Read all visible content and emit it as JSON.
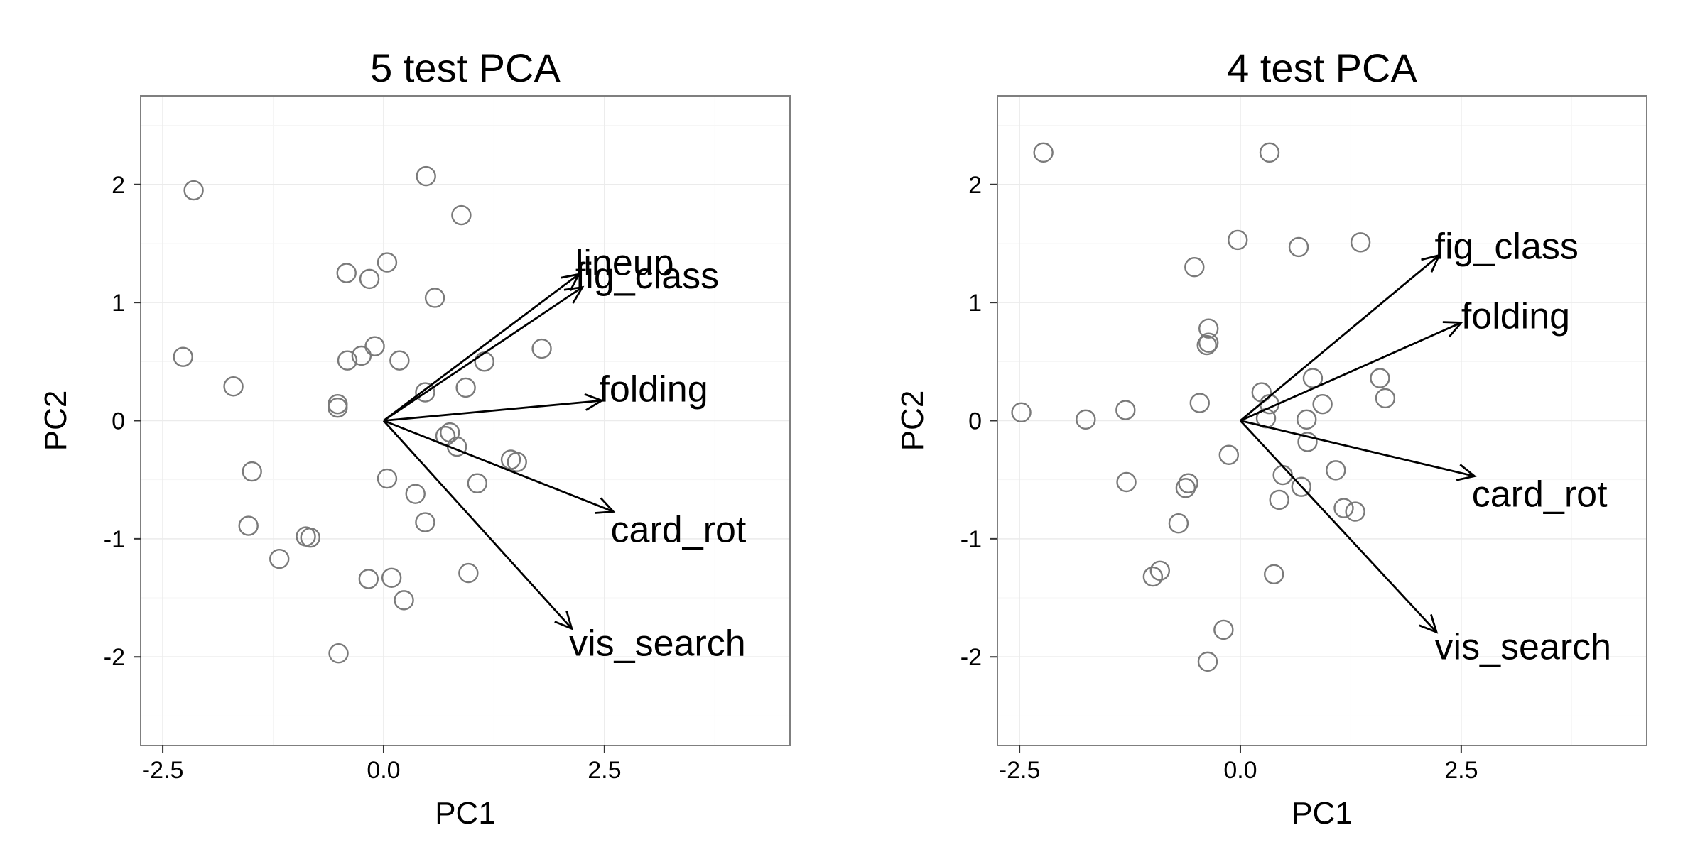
{
  "chart_data": [
    {
      "type": "scatter",
      "title": "5 test PCA",
      "xlabel": "PC1",
      "ylabel": "PC2",
      "xlim": [
        -2.75,
        4.6
      ],
      "ylim": [
        -2.75,
        2.75
      ],
      "xticks": [
        -2.5,
        0.0,
        2.5
      ],
      "xtick_labels": [
        "-2.5",
        "0.0",
        "2.5"
      ],
      "yticks": [
        -2,
        -1,
        0,
        1,
        2
      ],
      "ytick_labels": [
        "-2",
        "-1",
        "0",
        "1",
        "2"
      ],
      "grid": true,
      "points": [
        [
          -2.15,
          1.95
        ],
        [
          -2.27,
          0.54
        ],
        [
          -1.7,
          0.29
        ],
        [
          -1.49,
          -0.43
        ],
        [
          -1.53,
          -0.89
        ],
        [
          -1.18,
          -1.17
        ],
        [
          -0.88,
          -0.98
        ],
        [
          -0.83,
          -0.99
        ],
        [
          -0.52,
          0.14
        ],
        [
          -0.52,
          0.11
        ],
        [
          -0.42,
          1.25
        ],
        [
          -0.41,
          0.51
        ],
        [
          -0.25,
          0.55
        ],
        [
          -0.16,
          1.2
        ],
        [
          -0.1,
          0.63
        ],
        [
          0.04,
          1.34
        ],
        [
          0.18,
          0.51
        ],
        [
          0.48,
          2.07
        ],
        [
          0.47,
          0.24
        ],
        [
          0.58,
          1.04
        ],
        [
          0.88,
          1.74
        ],
        [
          0.93,
          0.28
        ],
        [
          1.14,
          0.5
        ],
        [
          1.79,
          0.61
        ],
        [
          0.7,
          -0.13
        ],
        [
          0.75,
          -0.1
        ],
        [
          0.83,
          -0.22
        ],
        [
          1.06,
          -0.53
        ],
        [
          1.44,
          -0.33
        ],
        [
          1.51,
          -0.35
        ],
        [
          0.04,
          -0.49
        ],
        [
          0.36,
          -0.62
        ],
        [
          0.47,
          -0.86
        ],
        [
          0.96,
          -1.29
        ],
        [
          -0.17,
          -1.34
        ],
        [
          0.09,
          -1.33
        ],
        [
          0.23,
          -1.52
        ],
        [
          -0.51,
          -1.97
        ]
      ],
      "arrows": [
        {
          "label": "lineup",
          "x": 2.21,
          "y": 1.24,
          "label_x": 2.17,
          "label_y": 1.34
        },
        {
          "label": "fig_class",
          "x": 2.25,
          "y": 1.13,
          "label_x": 2.17,
          "label_y": 1.23
        },
        {
          "label": "folding",
          "x": 2.47,
          "y": 0.17,
          "label_x": 2.44,
          "label_y": 0.27
        },
        {
          "label": "card_rot",
          "x": 2.6,
          "y": -0.77,
          "label_x": 2.57,
          "label_y": -0.92
        },
        {
          "label": "vis_search",
          "x": 2.13,
          "y": -1.76,
          "label_x": 2.1,
          "label_y": -1.88
        }
      ]
    },
    {
      "type": "scatter",
      "title": "4 test PCA",
      "xlabel": "PC1",
      "ylabel": "PC2",
      "xlim": [
        -2.75,
        4.6
      ],
      "ylim": [
        -2.75,
        2.75
      ],
      "xticks": [
        -2.5,
        0.0,
        2.5
      ],
      "xtick_labels": [
        "-2.5",
        "0.0",
        "2.5"
      ],
      "yticks": [
        -2,
        -1,
        0,
        1,
        2
      ],
      "ytick_labels": [
        "-2",
        "-1",
        "0",
        "1",
        "2"
      ],
      "grid": true,
      "points": [
        [
          -2.23,
          2.27
        ],
        [
          0.33,
          2.27
        ],
        [
          -0.03,
          1.53
        ],
        [
          0.66,
          1.47
        ],
        [
          1.36,
          1.51
        ],
        [
          -0.52,
          1.3
        ],
        [
          -0.36,
          0.78
        ],
        [
          -0.38,
          0.64
        ],
        [
          -0.36,
          0.66
        ],
        [
          0.24,
          0.24
        ],
        [
          0.33,
          0.14
        ],
        [
          0.82,
          0.36
        ],
        [
          0.29,
          0.02
        ],
        [
          -0.46,
          0.15
        ],
        [
          -1.3,
          0.09
        ],
        [
          -1.75,
          0.01
        ],
        [
          -2.48,
          0.07
        ],
        [
          0.75,
          0.01
        ],
        [
          0.93,
          0.14
        ],
        [
          1.58,
          0.36
        ],
        [
          1.64,
          0.19
        ],
        [
          0.76,
          -0.18
        ],
        [
          -0.13,
          -0.29
        ],
        [
          0.48,
          -0.46
        ],
        [
          0.44,
          -0.67
        ],
        [
          0.69,
          -0.56
        ],
        [
          1.08,
          -0.42
        ],
        [
          1.17,
          -0.74
        ],
        [
          1.3,
          -0.77
        ],
        [
          -1.29,
          -0.52
        ],
        [
          -0.59,
          -0.53
        ],
        [
          -0.62,
          -0.57
        ],
        [
          -0.7,
          -0.87
        ],
        [
          -0.91,
          -1.27
        ],
        [
          -0.99,
          -1.32
        ],
        [
          0.38,
          -1.3
        ],
        [
          -0.19,
          -1.77
        ],
        [
          -0.37,
          -2.04
        ]
      ],
      "arrows": [
        {
          "label": "fig_class",
          "x": 2.25,
          "y": 1.4,
          "label_x": 2.2,
          "label_y": 1.48
        },
        {
          "label": "folding",
          "x": 2.5,
          "y": 0.83,
          "label_x": 2.5,
          "label_y": 0.89
        },
        {
          "label": "card_rot",
          "x": 2.65,
          "y": -0.47,
          "label_x": 2.62,
          "label_y": -0.62
        },
        {
          "label": "vis_search",
          "x": 2.22,
          "y": -1.79,
          "label_x": 2.2,
          "label_y": -1.91
        }
      ]
    }
  ]
}
